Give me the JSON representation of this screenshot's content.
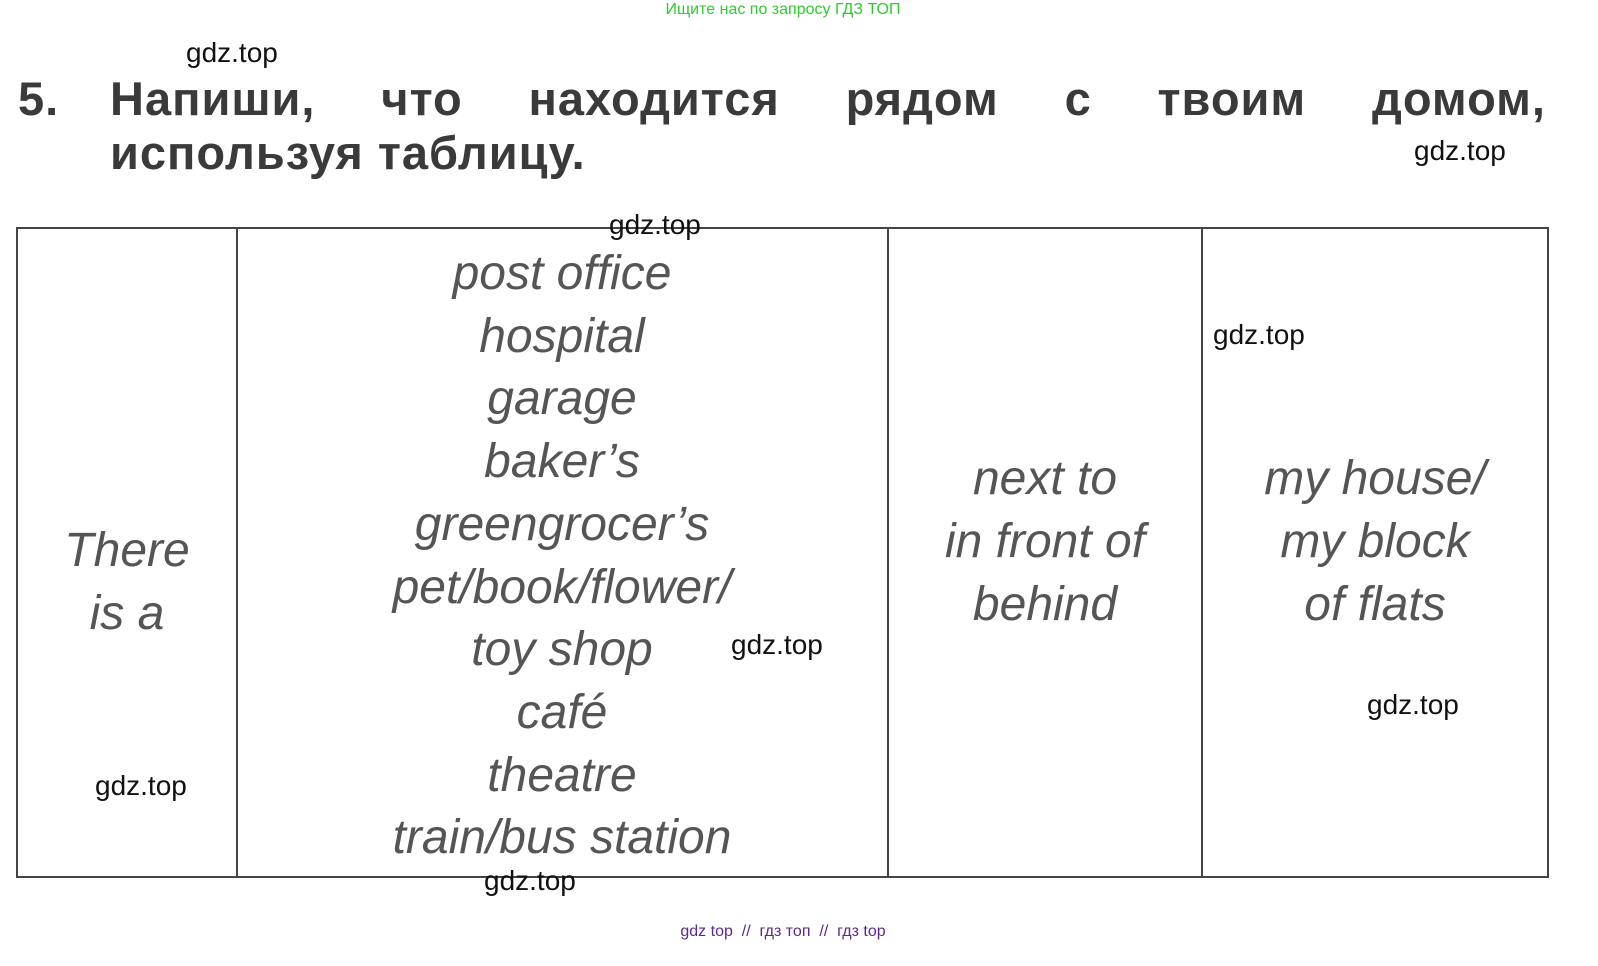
{
  "banner": "Ищите нас по запросу ГДЗ ТОП",
  "task": {
    "number": "5.",
    "line1": "Напиши, что находится рядом с твоим домом,",
    "line2": "используя таблицу."
  },
  "table": {
    "col1": [
      "There",
      "is a"
    ],
    "col2": [
      "post office",
      "hospital",
      "garage",
      "baker’s",
      "greengrocer’s",
      "pet/book/flower/",
      "toy shop",
      "café",
      "theatre",
      "train/bus station"
    ],
    "col3": [
      "next to",
      "in front of",
      "behind"
    ],
    "col4": [
      "my house/",
      "my block",
      "of flats"
    ]
  },
  "watermark": "gdz.top",
  "footer": "gdz top  //  гдз топ  //  гдз top"
}
